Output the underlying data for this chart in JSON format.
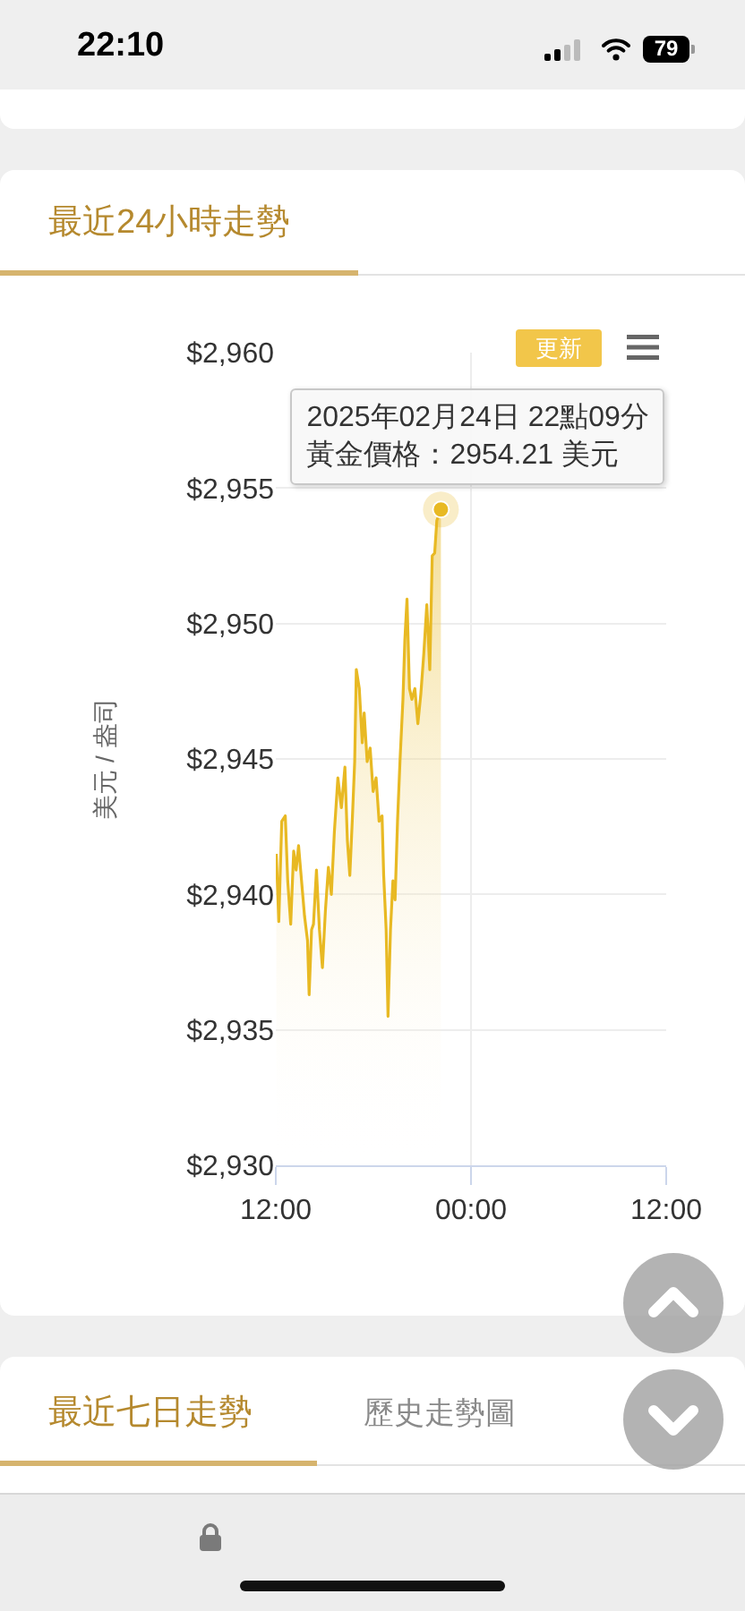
{
  "chart_data": {
    "type": "area",
    "title": "最近24小時走勢",
    "ylabel": "美元 / 盎司",
    "color": "#e8b923",
    "marker": "none",
    "grid": true,
    "x": [
      "2025-02-24T12:02",
      "2025-02-24T12:11",
      "2025-02-24T12:22",
      "2025-02-24T12:35",
      "2025-02-24T12:44",
      "2025-02-24T12:55",
      "2025-02-24T13:06",
      "2025-02-24T13:15",
      "2025-02-24T13:24",
      "2025-02-24T13:35",
      "2025-02-24T13:46",
      "2025-02-24T13:57",
      "2025-02-24T14:03",
      "2025-02-24T14:12",
      "2025-02-24T14:19",
      "2025-02-24T14:30",
      "2025-02-24T14:41",
      "2025-02-24T14:52",
      "2025-02-24T15:03",
      "2025-02-24T15:14",
      "2025-02-24T15:25",
      "2025-02-24T15:36",
      "2025-02-24T15:49",
      "2025-02-24T16:02",
      "2025-02-24T16:15",
      "2025-02-24T16:24",
      "2025-02-24T16:33",
      "2025-02-24T16:42",
      "2025-02-24T16:51",
      "2025-02-24T16:57",
      "2025-02-24T17:08",
      "2025-02-24T17:19",
      "2025-02-24T17:26",
      "2025-02-24T17:37",
      "2025-02-24T17:48",
      "2025-02-24T17:59",
      "2025-02-24T18:10",
      "2025-02-24T18:21",
      "2025-02-24T18:32",
      "2025-02-24T18:38",
      "2025-02-24T18:47",
      "2025-02-24T18:54",
      "2025-02-24T19:03",
      "2025-02-24T19:12",
      "2025-02-24T19:20",
      "2025-02-24T19:29",
      "2025-02-24T19:38",
      "2025-02-24T19:49",
      "2025-02-24T19:56",
      "2025-02-24T20:04",
      "2025-02-24T20:13",
      "2025-02-24T20:22",
      "2025-02-24T20:33",
      "2025-02-24T20:44",
      "2025-02-24T20:55",
      "2025-02-24T21:06",
      "2025-02-24T21:17",
      "2025-02-24T21:28",
      "2025-02-24T21:37",
      "2025-02-24T21:46",
      "2025-02-24T21:54",
      "2025-02-24T22:09"
    ],
    "values": [
      2941.5,
      2939.0,
      2942.7,
      2942.9,
      2940.5,
      2938.9,
      2941.6,
      2940.9,
      2941.8,
      2940.5,
      2939.2,
      2938.3,
      2936.3,
      2938.7,
      2938.9,
      2940.9,
      2938.7,
      2937.3,
      2939.4,
      2941.0,
      2940.0,
      2942.3,
      2944.3,
      2943.2,
      2944.7,
      2942.0,
      2940.7,
      2942.7,
      2944.9,
      2948.3,
      2947.6,
      2945.6,
      2946.7,
      2944.9,
      2945.4,
      2943.8,
      2944.3,
      2942.7,
      2942.9,
      2940.7,
      2938.7,
      2935.5,
      2938.7,
      2940.5,
      2939.8,
      2942.7,
      2944.9,
      2947.2,
      2949.4,
      2950.9,
      2947.6,
      2947.2,
      2947.6,
      2946.3,
      2947.4,
      2948.9,
      2950.7,
      2948.3,
      2952.5,
      2952.6,
      2953.8,
      2954.21
    ],
    "xlim": [
      "2025-02-24T12:00",
      "2025-02-25T12:00"
    ],
    "xticks": [
      {
        "value": "2025-02-24T12:00",
        "label": "12:00"
      },
      {
        "value": "2025-02-25T00:00",
        "label": "00:00"
      },
      {
        "value": "2025-02-25T12:00",
        "label": "12:00"
      }
    ],
    "ylim": [
      2930,
      2960
    ],
    "yticks": [
      {
        "value": 2930,
        "label": "$2,930"
      },
      {
        "value": 2935,
        "label": "$2,935"
      },
      {
        "value": 2940,
        "label": "$2,940"
      },
      {
        "value": 2945,
        "label": "$2,945"
      },
      {
        "value": 2950,
        "label": "$2,950"
      },
      {
        "value": 2955,
        "label": "$2,955"
      },
      {
        "value": 2960,
        "label": "$2,960"
      }
    ],
    "annotations": [
      {
        "text": "2025年02月24日 22點09分",
        "x": "2025-02-24T22:09",
        "y": 2954.21
      },
      "黃金價格：2954.21 美元",
      "更新",
      "最近七日走勢",
      "歷史走勢圖",
      "22:10",
      "79"
    ]
  }
}
